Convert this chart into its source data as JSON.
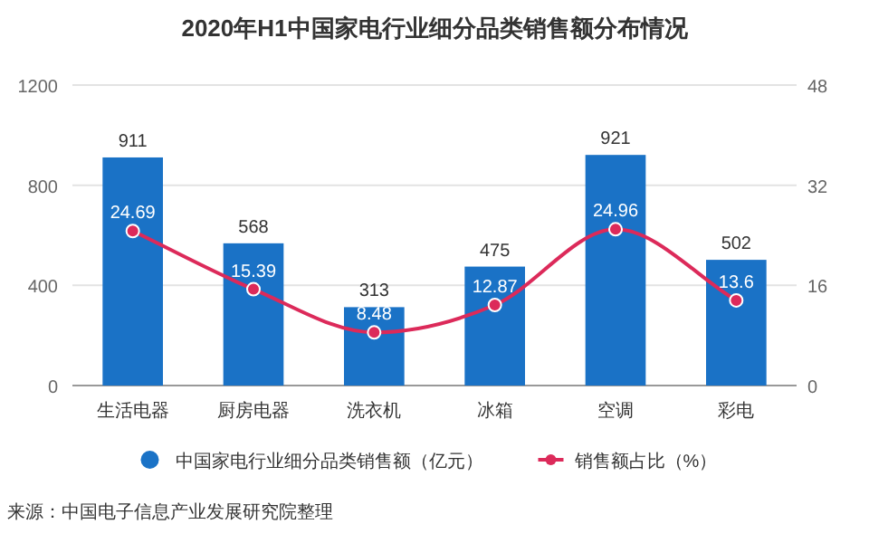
{
  "chart_data": {
    "type": "bar",
    "title": "2020年H1中国家电行业细分品类销售额分布情况",
    "categories": [
      "生活电器",
      "厨房电器",
      "洗衣机",
      "冰箱",
      "空调",
      "彩电"
    ],
    "series": [
      {
        "name": "中国家电行业细分品类销售额（亿元）",
        "color": "#1a72c6",
        "values": [
          911,
          568,
          313,
          475,
          921,
          502
        ]
      },
      {
        "name": "销售额占比（%）",
        "type": "line",
        "axis": "y2",
        "color": "#dc2a5a",
        "marker": "circle",
        "values": [
          24.69,
          15.39,
          8.48,
          12.87,
          24.96,
          13.6
        ]
      }
    ],
    "ylim": [
      0,
      1200
    ],
    "yticks": [
      0,
      400,
      800,
      1200
    ],
    "y2lim": [
      0,
      48
    ],
    "y2ticks": [
      0,
      16,
      32,
      48
    ],
    "grid": "y",
    "legend": "bottom",
    "data_labels": true,
    "annotations": [
      "来源：中国电子信息产业发展研究院整理"
    ]
  }
}
